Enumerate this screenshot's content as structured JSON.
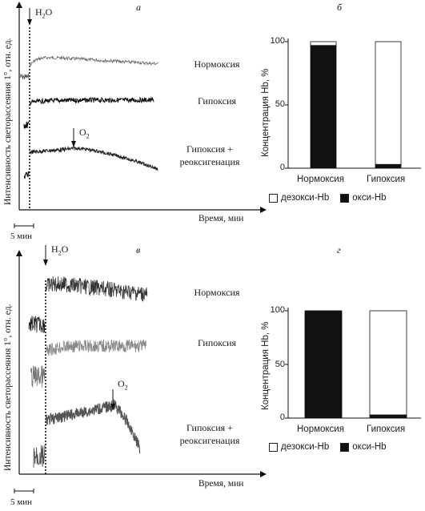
{
  "panel_a": {
    "letter": "а",
    "water_label_main": "H",
    "water_label_sub": "2",
    "water_label_end": "O",
    "o2_main": "O",
    "o2_sub": "2",
    "ylabel": "Интенсивность светорассеяния 1°, отн. ед.",
    "xlabel": "Время, мин",
    "scale_label": "5 мин",
    "traces": [
      {
        "label": "Нормоксия"
      },
      {
        "label": "Гипоксия"
      },
      {
        "label_line1": "Гипоксия +",
        "label_line2": "реоксигенация"
      }
    ]
  },
  "panel_v": {
    "letter": "в",
    "water_label_main": "H",
    "water_label_sub": "2",
    "water_label_end": "O",
    "o2_main": "O",
    "o2_sub": "2",
    "ylabel": "Интенсивность светорассеяния 1°, отн. ед.",
    "xlabel": "Время, мин",
    "scale_label": "5 мин",
    "traces": [
      {
        "label": "Нормоксия"
      },
      {
        "label": "Гипоксия"
      },
      {
        "label_line1": "Гипоксия +",
        "label_line2": "реоксигенация"
      }
    ]
  },
  "chart_data": [
    {
      "panel": "б",
      "type": "bar",
      "stacked": true,
      "categories": [
        "Нормоксия",
        "Гипоксия"
      ],
      "series": [
        {
          "name": "окси-Hb",
          "color": "#111111",
          "values": [
            97,
            3
          ]
        },
        {
          "name": "дезокси-Hb",
          "color": "#ffffff",
          "values": [
            3,
            97
          ]
        }
      ],
      "ylabel": "Концентрация Hb, %",
      "ylim": [
        0,
        100
      ],
      "yticks": [
        "0",
        "50",
        "100"
      ],
      "legend": "bottom"
    },
    {
      "panel": "г",
      "type": "bar",
      "stacked": true,
      "categories": [
        "Нормоксия",
        "Гипоксия"
      ],
      "series": [
        {
          "name": "окси-Hb",
          "color": "#111111",
          "values": [
            100,
            3
          ]
        },
        {
          "name": "дезокси-Hb",
          "color": "#ffffff",
          "values": [
            0,
            97
          ]
        }
      ],
      "ylabel": "Концентрация Hb, %",
      "ylim": [
        0,
        100
      ],
      "yticks": [
        "0",
        "50",
        "100"
      ],
      "legend": "bottom"
    }
  ]
}
